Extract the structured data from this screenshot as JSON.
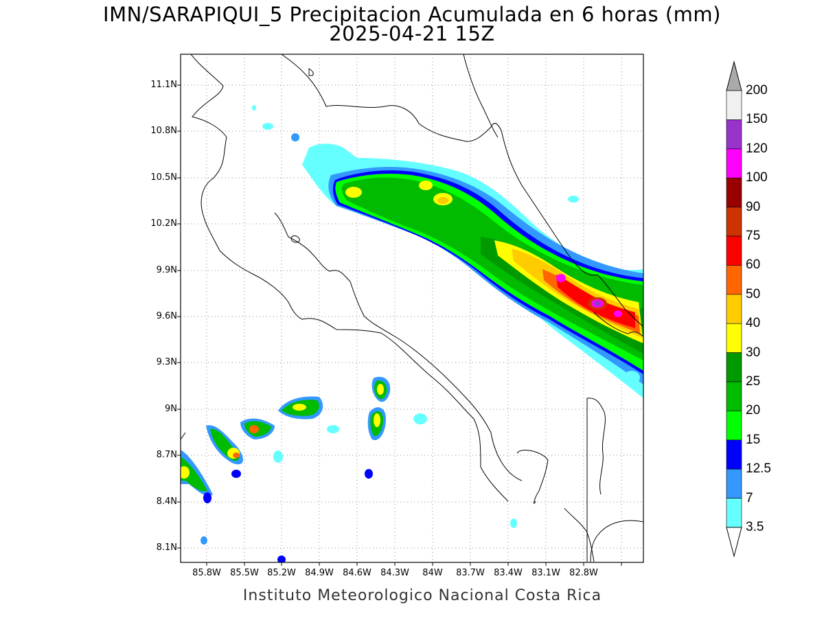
{
  "title": {
    "line1": "IMN/SARAPIQUI_5 Precipitacion Acumulada en 6 horas (mm)",
    "line2": "2025-04-21 15Z"
  },
  "footer": "Instituto Meteorologico Nacional Costa Rica",
  "lat_labels": [
    "11.1N",
    "10.8N",
    "10.5N",
    "10.2N",
    "9.9N",
    "9.6N",
    "9.3N",
    "9N",
    "8.7N",
    "8.4N",
    "8.1N"
  ],
  "lon_labels": [
    "85.8W",
    "85.5W",
    "85.2W",
    "84.9W",
    "84.6W",
    "84.3W",
    "84W",
    "83.7W",
    "83.4W",
    "83.1W",
    "82.8W"
  ],
  "colorbar": {
    "labels": [
      "200",
      "150",
      "120",
      "100",
      "90",
      "75",
      "60",
      "50",
      "40",
      "30",
      "25",
      "20",
      "15",
      "12.5",
      "7",
      "3.5"
    ],
    "colors": [
      "#f0f0f0",
      "#9933cc",
      "#ff00ff",
      "#990000",
      "#cc3300",
      "#ff0000",
      "#ff6600",
      "#ffcc00",
      "#ffff00",
      "#009900",
      "#00bb00",
      "#00ff00",
      "#0000ff",
      "#3399ff",
      "#66ffff"
    ],
    "over_color": "#aaaaaa",
    "under_color": "#ffffff"
  }
}
